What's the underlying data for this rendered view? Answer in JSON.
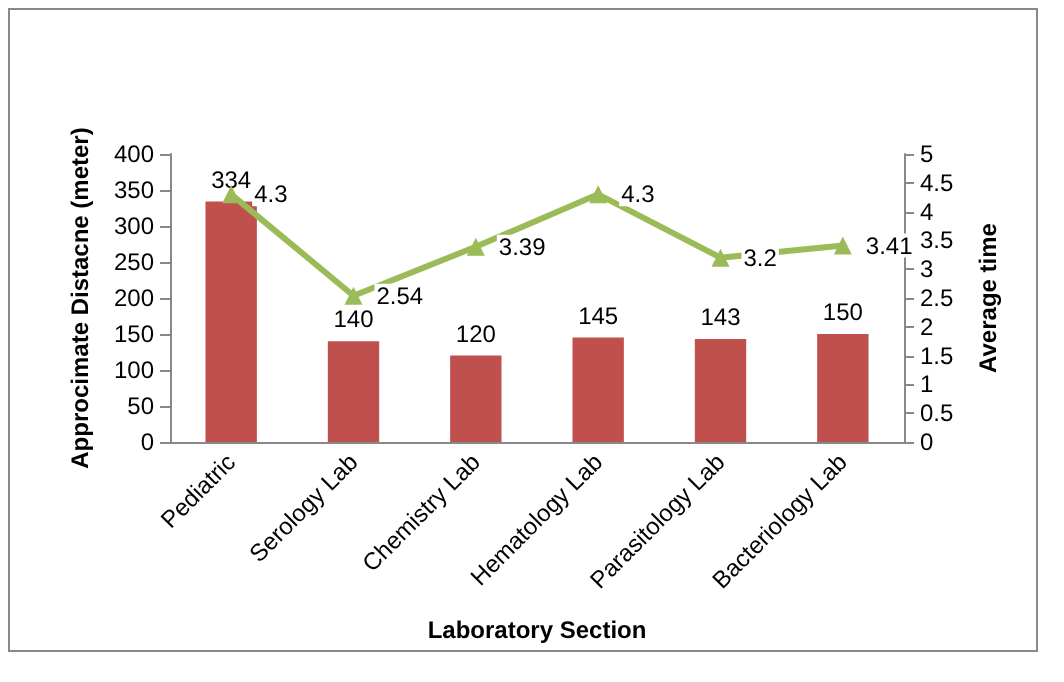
{
  "chart_data": {
    "type": "bar",
    "xlabel": "Laboratory Section",
    "ylabel": "Approcimate Distacne (meter)",
    "y2label": "Average time",
    "categories": [
      "Pediatric",
      "Serology Lab",
      "Chemistry Lab",
      "Hematology Lab",
      "Parasitology Lab",
      "Bacteriology Lab"
    ],
    "series": [
      {
        "color": "#c0504d",
        "values": [
          334,
          140,
          120,
          145,
          143,
          150
        ]
      },
      {
        "type": "line",
        "axis": "y2",
        "color": "#9bbb59",
        "marker": "triangle",
        "values": [
          4.3,
          2.54,
          3.39,
          4.3,
          3.2,
          3.41
        ]
      }
    ],
    "ylim": [
      0,
      400
    ],
    "yticks": [
      0,
      50,
      100,
      150,
      200,
      250,
      300,
      350,
      400
    ],
    "y2lim": [
      0,
      5
    ],
    "y2ticks": [
      0,
      0.5,
      1,
      1.5,
      2,
      2.5,
      3,
      3.5,
      4,
      4.5,
      5
    ],
    "data_labels": true
  }
}
